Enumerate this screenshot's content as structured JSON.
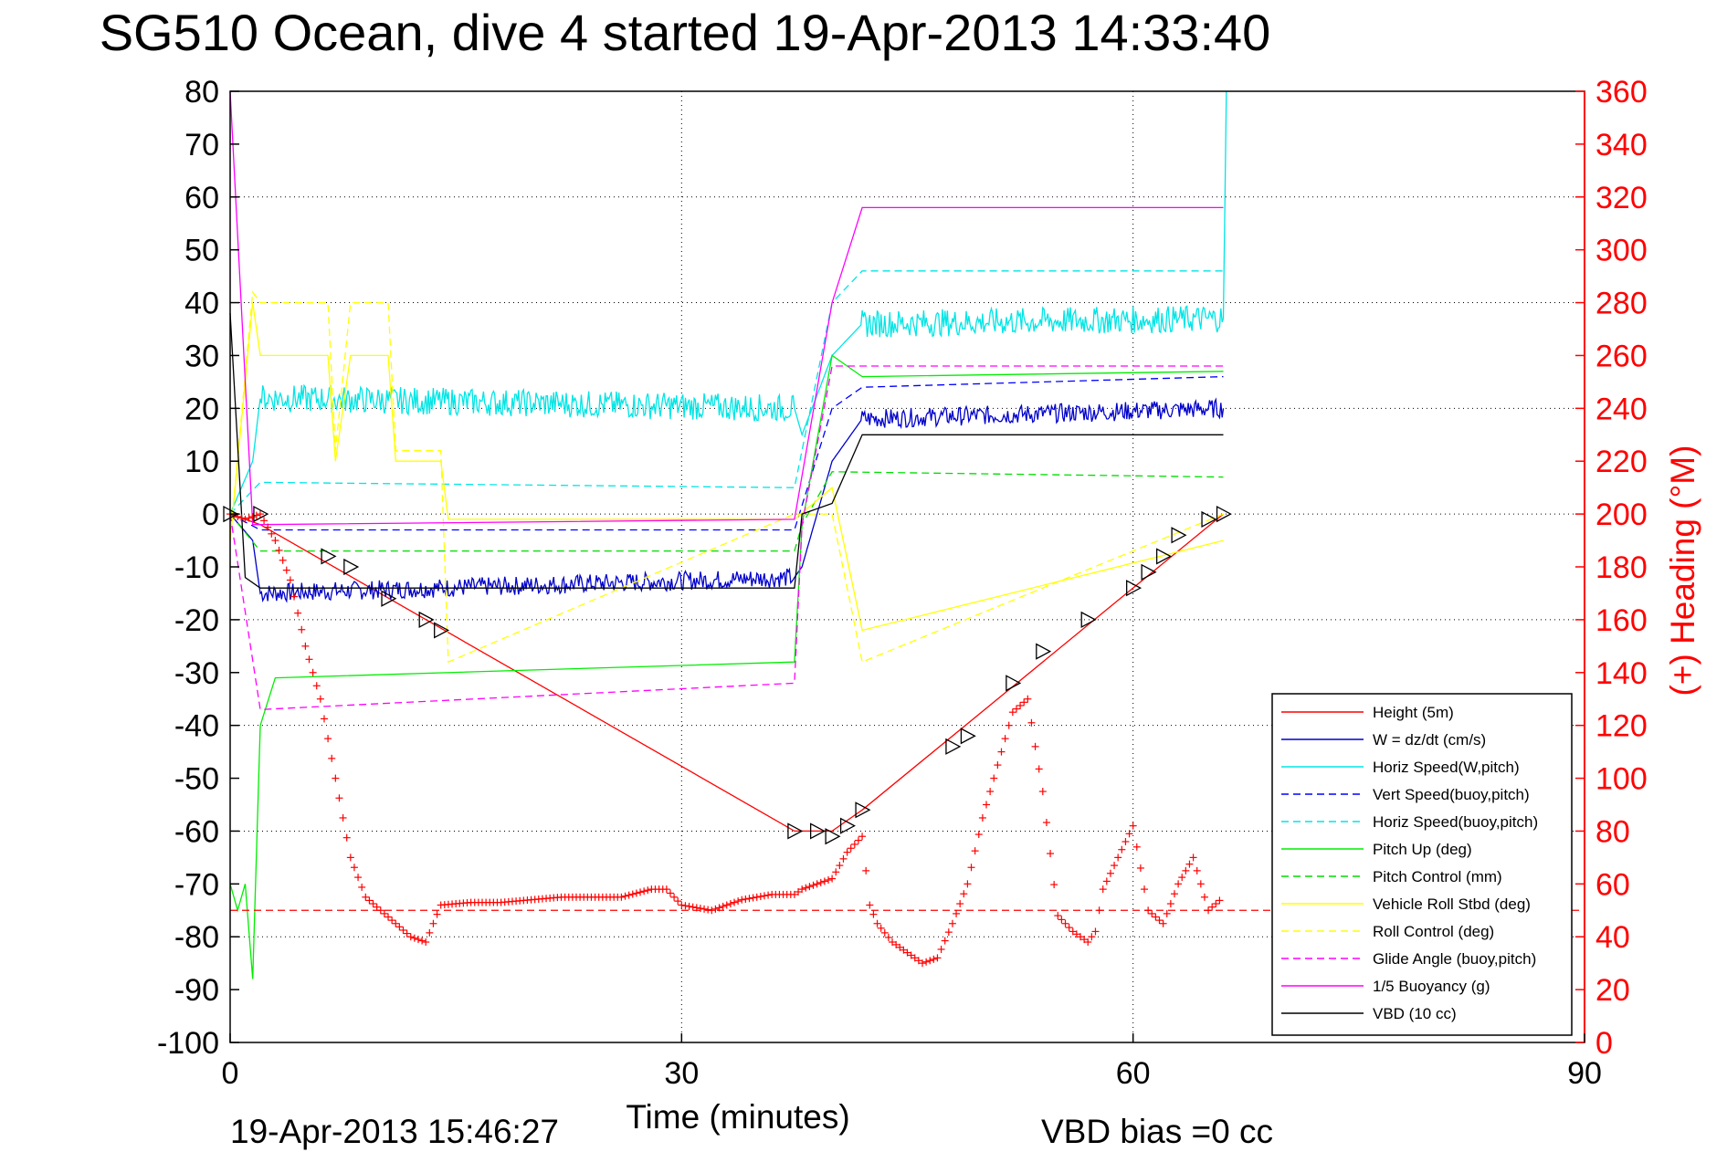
{
  "chart_data": {
    "type": "line",
    "title": "SG510 Ocean, dive 4 started 19-Apr-2013 14:33:40",
    "xlabel": "Time (minutes)",
    "ylabel_right": "(+) Heading (°M)",
    "xlim": [
      0,
      90
    ],
    "ylim_left": [
      -100,
      80
    ],
    "ylim_right": [
      0,
      360
    ],
    "xticks": [
      "0",
      "30",
      "60",
      "90"
    ],
    "yticks_left": [
      "80",
      "70",
      "60",
      "50",
      "40",
      "30",
      "20",
      "10",
      "0",
      "-10",
      "-20",
      "-30",
      "-40",
      "-50",
      "-60",
      "-70",
      "-80",
      "-90",
      "-100"
    ],
    "yticks_right": [
      "360",
      "340",
      "320",
      "300",
      "280",
      "260",
      "240",
      "220",
      "200",
      "180",
      "160",
      "140",
      "120",
      "100",
      "80",
      "60",
      "40",
      "20",
      "0"
    ],
    "grid": true,
    "legend_placement": "bottom-right",
    "footer_left": "19-Apr-2013 15:46:27",
    "footer_right": "VBD bias =0 cc",
    "series": [
      {
        "name": "Height (5m)",
        "color": "#ff0000",
        "dash": "solid",
        "x": [
          0,
          2,
          37.5,
          40,
          42,
          66
        ],
        "y": [
          0,
          -2,
          -60,
          -60,
          -56,
          0
        ]
      },
      {
        "name": "W = dz/dt (cm/s)",
        "color": "#0000cc",
        "dash": "solid",
        "noise": 0.9,
        "x": [
          0,
          1.5,
          2,
          37.5,
          38,
          40,
          42,
          66
        ],
        "y": [
          0,
          -5,
          -15,
          -12,
          -10,
          10,
          18,
          20
        ]
      },
      {
        "name": "Horiz Speed(W,pitch)",
        "color": "#00e5e5",
        "dash": "solid",
        "noise": 1.3,
        "x": [
          0,
          1.5,
          2,
          37.5,
          38,
          40,
          42,
          66,
          66.2
        ],
        "y": [
          0,
          10,
          22,
          20,
          15,
          30,
          36,
          37,
          80
        ]
      },
      {
        "name": "Vert Speed(buoy,pitch)",
        "color": "#0000ff",
        "dash": "dashed",
        "x": [
          0,
          2,
          37.5,
          40,
          42,
          66
        ],
        "y": [
          0,
          -3,
          -3,
          20,
          24,
          26
        ]
      },
      {
        "name": "Horiz Speed(buoy,pitch)",
        "color": "#00e5e5",
        "dash": "dashed",
        "x": [
          0,
          2,
          37.5,
          40,
          42,
          66
        ],
        "y": [
          0,
          6,
          5,
          40,
          46,
          46
        ]
      },
      {
        "name": "Pitch Up (deg)",
        "color": "#00ee00",
        "dash": "solid",
        "x": [
          0,
          0.5,
          1,
          1.5,
          2,
          3,
          37.5,
          38,
          40,
          42,
          66
        ],
        "y": [
          -70,
          -75,
          -70,
          -88,
          -40,
          -31,
          -28,
          -2,
          30,
          26,
          27
        ]
      },
      {
        "name": "Pitch Control (mm)",
        "color": "#00dd00",
        "dash": "dashed",
        "x": [
          0,
          2,
          37.5,
          38,
          40,
          66
        ],
        "y": [
          0,
          -7,
          -7,
          -2,
          8,
          7
        ]
      },
      {
        "name": "Vehicle Roll Stbd (deg)",
        "color": "#ffff00",
        "dash": "solid",
        "x": [
          0,
          1.5,
          2,
          6.5,
          7,
          8,
          10.5,
          11,
          14,
          14.5,
          37.5,
          40,
          42,
          66
        ],
        "y": [
          -5,
          40,
          30,
          30,
          10,
          30,
          30,
          10,
          10,
          -1,
          -1,
          5,
          -22,
          -5
        ]
      },
      {
        "name": "Roll Control (deg)",
        "color": "#ffff00",
        "dash": "dashed",
        "x": [
          0,
          1.5,
          2,
          6.5,
          7,
          8,
          10.5,
          11,
          14,
          14.5,
          37.5,
          40,
          42,
          66
        ],
        "y": [
          -5,
          42,
          40,
          40,
          12,
          40,
          40,
          12,
          12,
          -28,
          0,
          0,
          -28,
          0
        ]
      },
      {
        "name": "Glide Angle (buoy,pitch)",
        "color": "#ff00ff",
        "dash": "dashed",
        "x": [
          0,
          2,
          37.5,
          38,
          40,
          66
        ],
        "y": [
          0,
          -37,
          -32,
          -2,
          28,
          28
        ]
      },
      {
        "name": "1/5 Buoyancy (g)",
        "color": "#ff00ff",
        "dash": "solid",
        "x": [
          0,
          1.5,
          2,
          37.5,
          40,
          42,
          66
        ],
        "y": [
          80,
          -2,
          -2,
          -1,
          40,
          58,
          58
        ]
      },
      {
        "name": "VBD (10 cc)",
        "color": "#000000",
        "dash": "solid",
        "x": [
          0,
          1,
          2,
          37.5,
          38,
          40,
          42,
          66
        ],
        "y": [
          38,
          -12,
          -14,
          -14,
          0,
          2,
          15,
          15
        ]
      }
    ],
    "heading": {
      "axis": "right",
      "marker": "+",
      "color": "#ff0000",
      "x": [
        0,
        1,
        2,
        3,
        4,
        5,
        6,
        7,
        8,
        9,
        10,
        11,
        12,
        13,
        13.5,
        14,
        16,
        18,
        20,
        22,
        24,
        26,
        28,
        29,
        30,
        32,
        34,
        36,
        37.5,
        38,
        40,
        41,
        42,
        42.5,
        43,
        44,
        46,
        47,
        48,
        49,
        50,
        51,
        52,
        53,
        53.5,
        54,
        55,
        56,
        57,
        57.5,
        58,
        59,
        60,
        61,
        62,
        63,
        64,
        65,
        66
      ],
      "y": [
        200,
        198,
        200,
        190,
        175,
        150,
        130,
        100,
        70,
        55,
        50,
        45,
        40,
        38,
        45,
        52,
        53,
        53,
        54,
        55,
        55,
        55,
        58,
        58,
        52,
        50,
        54,
        56,
        56,
        58,
        62,
        72,
        78,
        52,
        45,
        38,
        30,
        32,
        45,
        60,
        85,
        105,
        125,
        130,
        112,
        95,
        48,
        42,
        38,
        42,
        58,
        70,
        82,
        50,
        45,
        60,
        70,
        50,
        55
      ],
      "reference_line": 50
    },
    "triangles": {
      "color": "#000000",
      "x": [
        0,
        2,
        6.5,
        8,
        10.5,
        13,
        14,
        37.5,
        39,
        40,
        41,
        42,
        48,
        49,
        52,
        54,
        57,
        60,
        61,
        62,
        63,
        65,
        66
      ],
      "y": [
        0,
        0,
        -8,
        -10,
        -16,
        -20,
        -22,
        -60,
        -60,
        -61,
        -59,
        -56,
        -44,
        -42,
        -32,
        -26,
        -20,
        -14,
        -11,
        -8,
        -4,
        -1,
        0
      ]
    }
  }
}
